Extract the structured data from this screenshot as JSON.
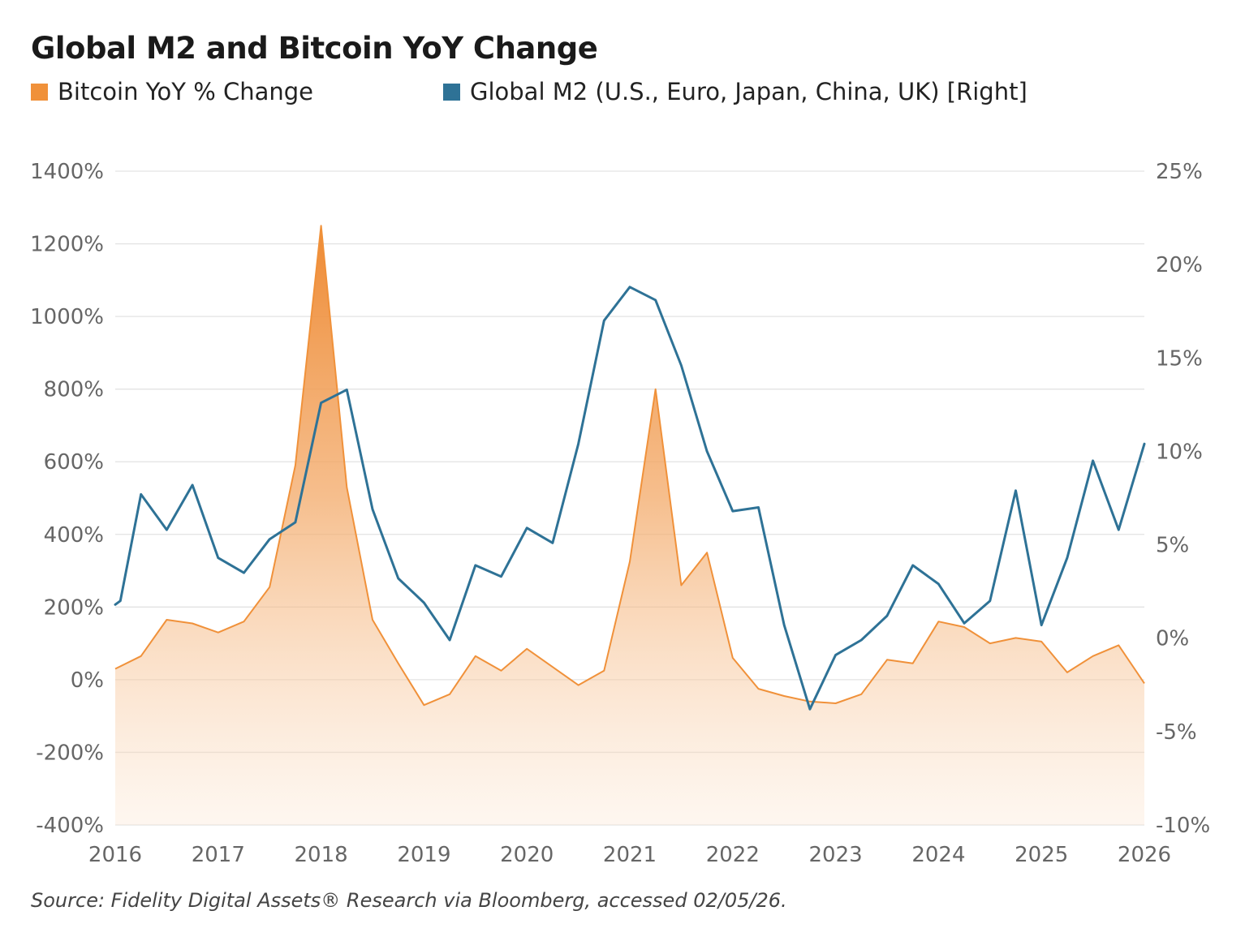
{
  "title": "Global M2 and Bitcoin YoY Change",
  "source": "Source: Fidelity Digital Assets® Research via Bloomberg, accessed 02/05/26.",
  "colors": {
    "bitcoin": "#f0913a",
    "m2": "#2e7296",
    "grid": "#e3e3e3",
    "axis_text": "#666666"
  },
  "chart_data": {
    "type": "line",
    "title": "Global M2 and Bitcoin YoY Change",
    "legend_placement": "top-left",
    "grid": true,
    "x_ticks": [
      "2016",
      "2017",
      "2018",
      "2019",
      "2020",
      "2021",
      "2022",
      "2023",
      "2024",
      "2025",
      "2026"
    ],
    "xlim": [
      2016,
      2026
    ],
    "y_left": {
      "ticks": [
        "1400%",
        "1200%",
        "1000%",
        "800%",
        "600%",
        "400%",
        "200%",
        "0%",
        "-200%",
        "-400%"
      ],
      "ylim": [
        -400,
        1400
      ]
    },
    "y_right": {
      "ticks": [
        "25%",
        "20%",
        "15%",
        "10%",
        "5%",
        "0%",
        "-5%",
        "-10%"
      ],
      "ylim": [
        -10,
        25
      ]
    },
    "series": [
      {
        "name": "Bitcoin YoY % Change",
        "type": "area",
        "axis": "left",
        "x": [
          2016.0,
          2016.25,
          2016.5,
          2016.75,
          2017.0,
          2017.25,
          2017.5,
          2017.75,
          2018.0,
          2018.25,
          2018.5,
          2018.75,
          2019.0,
          2019.25,
          2019.5,
          2019.75,
          2020.0,
          2020.25,
          2020.5,
          2020.75,
          2021.0,
          2021.25,
          2021.5,
          2021.75,
          2022.0,
          2022.25,
          2022.5,
          2022.75,
          2023.0,
          2023.25,
          2023.5,
          2023.75,
          2024.0,
          2024.25,
          2024.5,
          2024.75,
          2025.0,
          2025.25,
          2025.5,
          2025.75,
          2026.0
        ],
        "values": [
          30,
          65,
          165,
          155,
          130,
          160,
          255,
          590,
          1250,
          530,
          165,
          45,
          -70,
          -40,
          65,
          25,
          85,
          35,
          -15,
          25,
          325,
          800,
          260,
          350,
          60,
          -25,
          -45,
          -60,
          -65,
          -40,
          55,
          45,
          160,
          145,
          100,
          115,
          105,
          20,
          65,
          95,
          -10
        ]
      },
      {
        "name": "Global M2 (U.S., Euro, Japan, China, UK) [Right]",
        "type": "line",
        "axis": "right",
        "x": [
          2016.0,
          2016.05,
          2016.25,
          2016.5,
          2016.75,
          2017.0,
          2017.25,
          2017.5,
          2017.75,
          2018.0,
          2018.25,
          2018.5,
          2018.75,
          2019.0,
          2019.25,
          2019.5,
          2019.75,
          2020.0,
          2020.25,
          2020.5,
          2020.75,
          2021.0,
          2021.25,
          2021.5,
          2021.75,
          2022.0,
          2022.25,
          2022.5,
          2022.75,
          2023.0,
          2023.25,
          2023.5,
          2023.75,
          2024.0,
          2024.25,
          2024.5,
          2024.75,
          2025.0,
          2025.25,
          2025.5,
          2025.75,
          2026.0
        ],
        "values": [
          1.8,
          2.0,
          7.7,
          5.8,
          8.2,
          4.3,
          3.5,
          5.3,
          6.2,
          12.6,
          13.3,
          6.9,
          3.2,
          1.9,
          -0.1,
          3.9,
          3.3,
          5.9,
          5.1,
          10.4,
          17.0,
          18.8,
          18.1,
          14.6,
          10.0,
          6.8,
          7.0,
          0.7,
          -3.8,
          -0.9,
          -0.1,
          1.2,
          3.9,
          2.9,
          0.8,
          2.0,
          7.9,
          0.7,
          4.3,
          9.5,
          5.8,
          10.4
        ]
      }
    ]
  }
}
